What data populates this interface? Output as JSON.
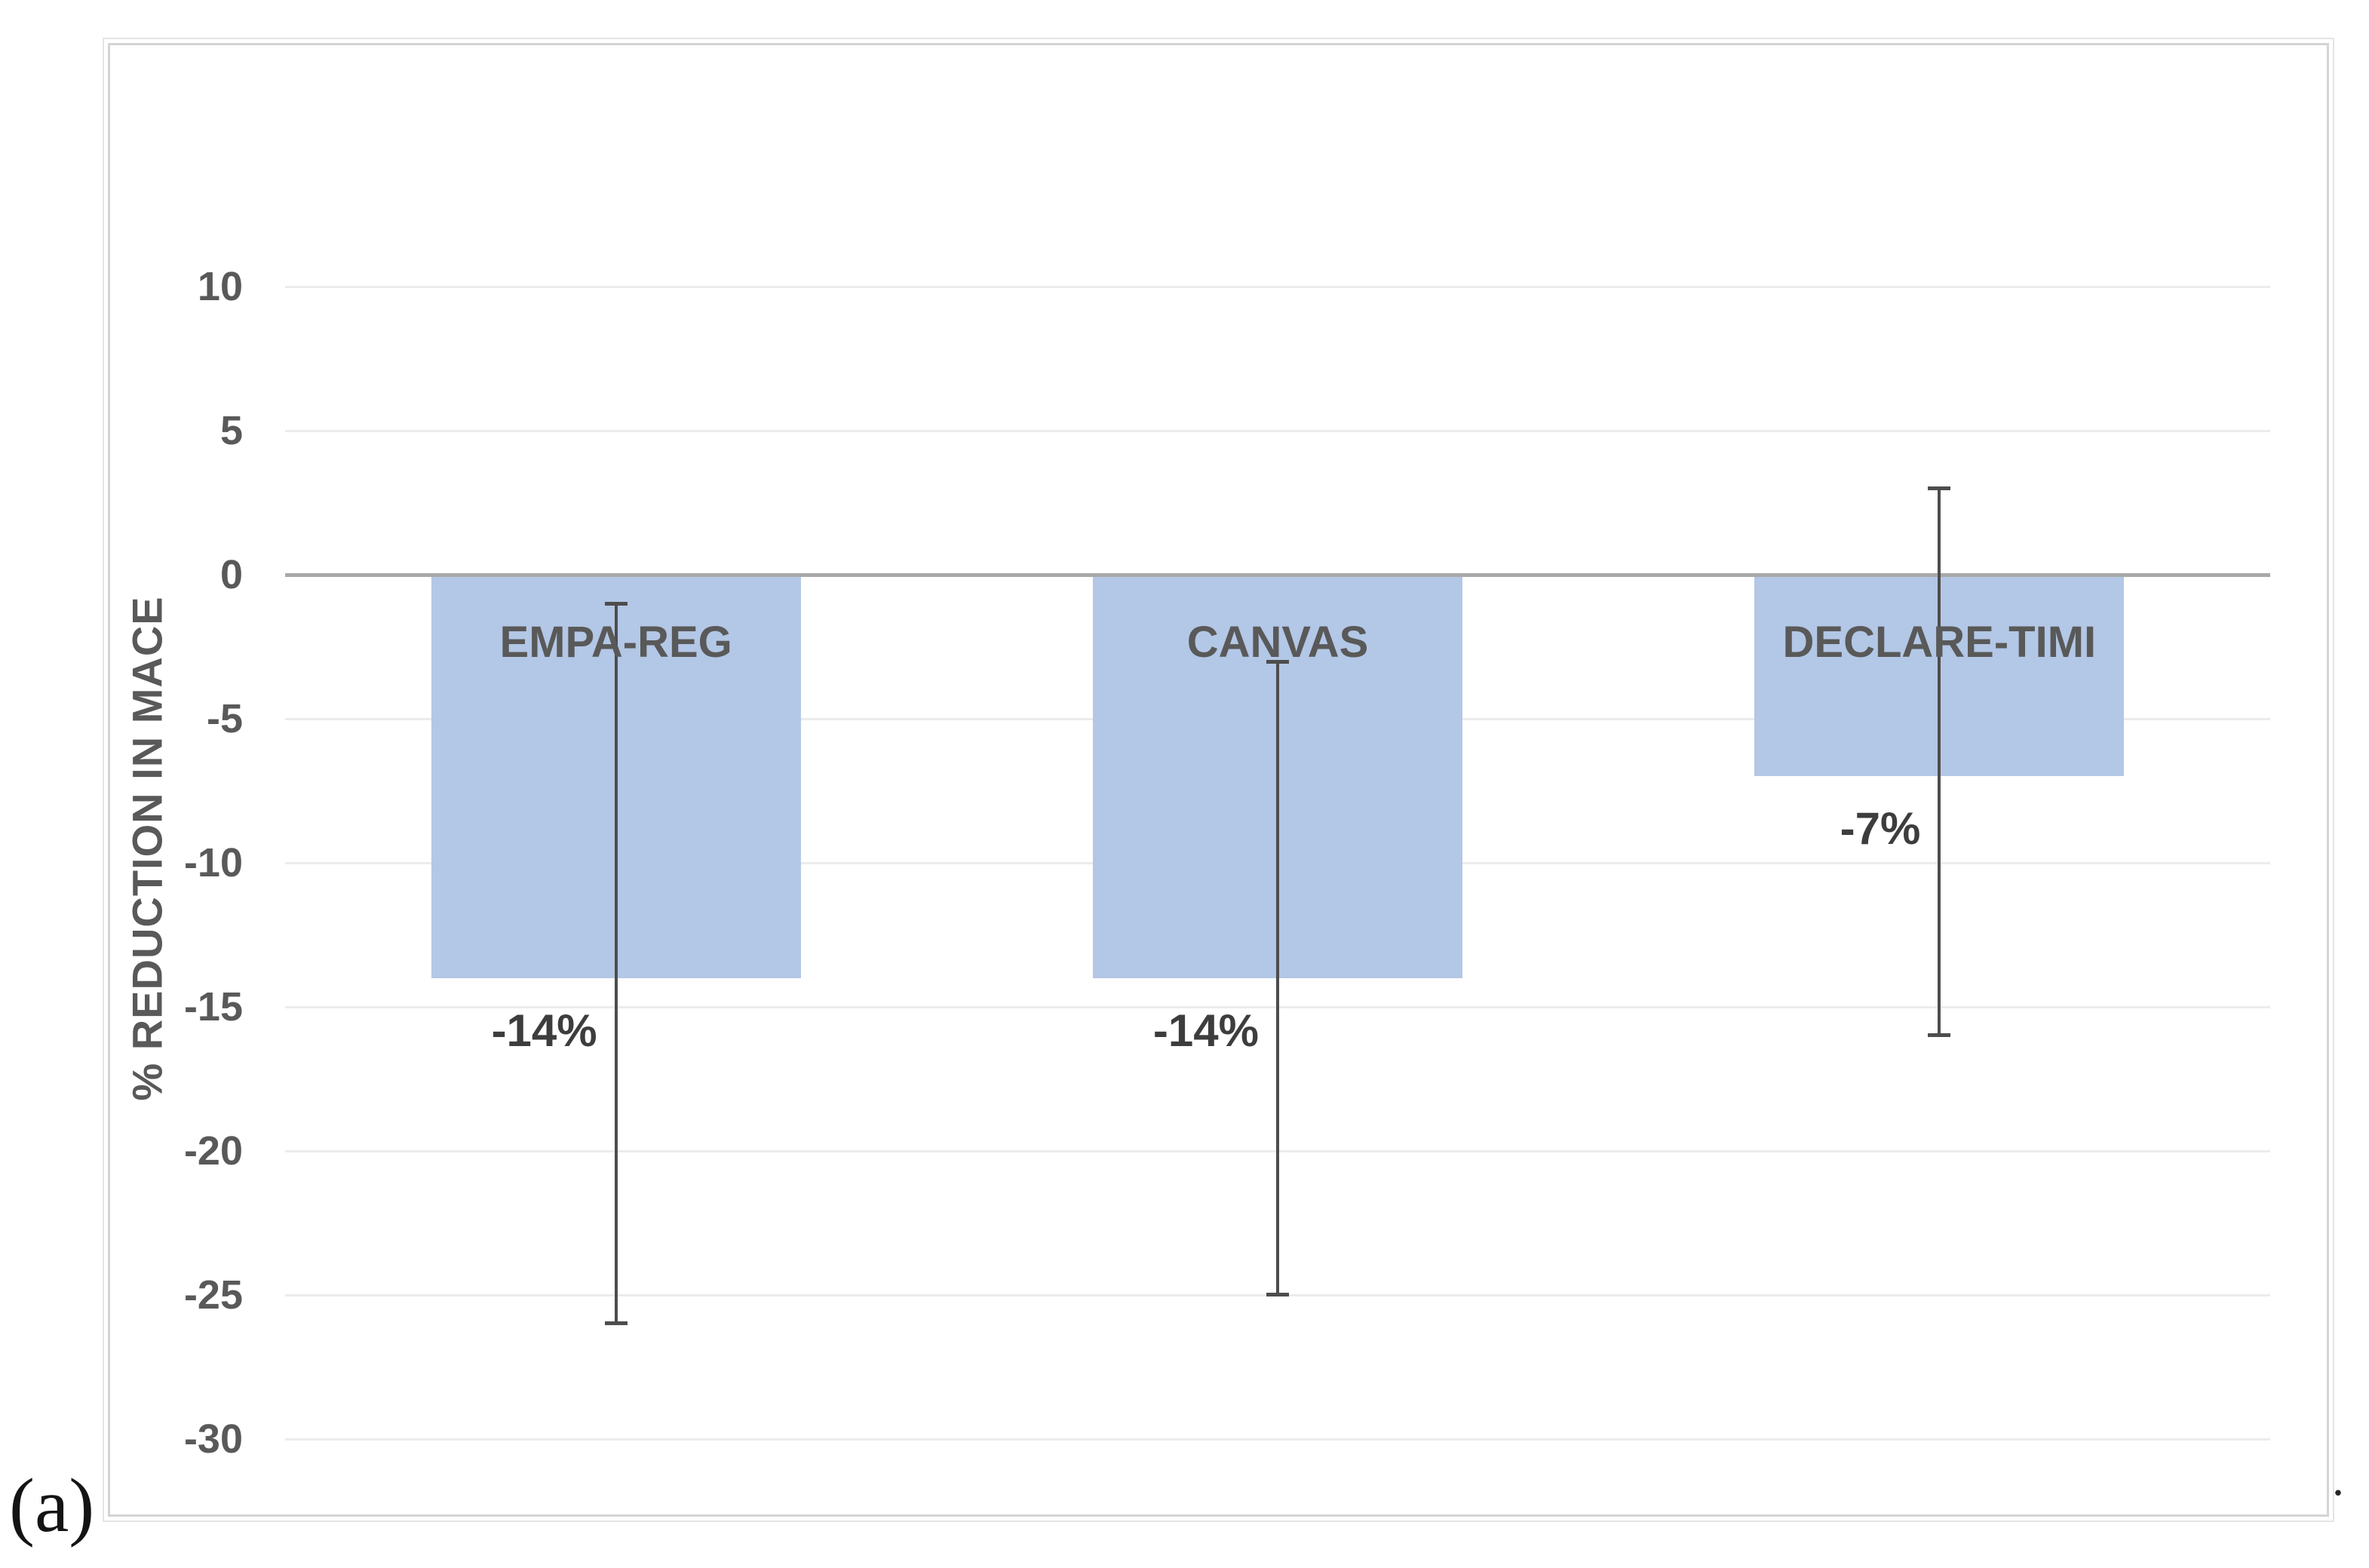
{
  "figure": {
    "panel_label": "(a)",
    "caption_period": "."
  },
  "chart_data": {
    "type": "bar",
    "title": "",
    "xlabel": "",
    "ylabel": "% REDUCTION IN MACE",
    "categories": [
      "EMPA-REG",
      "CANVAS",
      "DECLARE-TIMI"
    ],
    "series": [
      {
        "name": "% reduction in MACE",
        "values": [
          -14,
          -14,
          -7
        ],
        "data_labels": [
          "-14%",
          "-14%",
          "-7%"
        ],
        "error_high": [
          -1,
          -3,
          3
        ],
        "error_low": [
          -26,
          -25,
          -16
        ]
      }
    ],
    "yticks": [
      10,
      5,
      0,
      -5,
      -10,
      -15,
      -20,
      -25,
      -30
    ],
    "ylim": [
      -32,
      14
    ],
    "grid": true,
    "legend": false,
    "category_labels_position": "inside-below-axis",
    "data_labels_position": "outside-end",
    "colors": {
      "bar_fill": "#b3c7e6",
      "error_bar": "#4d4d4d",
      "axis_zero_line": "#a9a9a9",
      "gridline": "#ececec",
      "tick_label": "#595959",
      "category_label": "#595959",
      "data_label": "#3d3d3d",
      "chart_border": "#d4d4d4"
    }
  }
}
